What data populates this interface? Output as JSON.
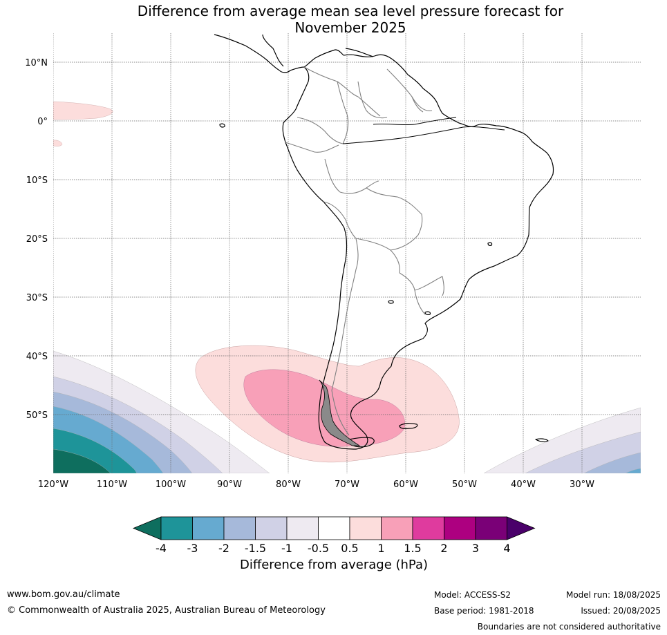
{
  "title_line1": "Difference from average mean sea level pressure forecast for",
  "title_line2": "November 2025",
  "lat_labels": [
    "10°N",
    "0°",
    "10°S",
    "20°S",
    "30°S",
    "40°S",
    "50°S"
  ],
  "lon_labels": [
    "120°W",
    "110°W",
    "100°W",
    "90°W",
    "80°W",
    "70°W",
    "60°W",
    "50°W",
    "40°W",
    "30°W"
  ],
  "colorbar": {
    "title": "Difference from average (hPa)",
    "tick_labels": [
      "-4",
      "-3",
      "-2",
      "-1.5",
      "-1",
      "-0.5",
      "0.5",
      "1",
      "1.5",
      "2",
      "3",
      "4"
    ],
    "colors": [
      "#0e6e5e",
      "#1e9499",
      "#66aad0",
      "#a6b9da",
      "#d0d1e6",
      "#eeeaf1",
      "#ffffff",
      "#fcdddc",
      "#f8a0b8",
      "#df3b9e",
      "#ad0080",
      "#7a0077",
      "#4a006a"
    ]
  },
  "footer": {
    "url": "www.bom.gov.au/climate",
    "copyright": "© Commonwealth of Australia 2025, Australian Bureau of Meteorology",
    "model": "Model: ACCESS-S2",
    "base_period": "Base period: 1981-2018",
    "model_run": "Model run: 18/08/2025",
    "issued": "Issued: 20/08/2025",
    "disclaimer": "Boundaries are not considered authoritative"
  },
  "map_data": {
    "projection": "equirectangular",
    "lon_range": [
      -120,
      -20
    ],
    "lat_range": [
      -60,
      15
    ],
    "gridlines": true
  }
}
